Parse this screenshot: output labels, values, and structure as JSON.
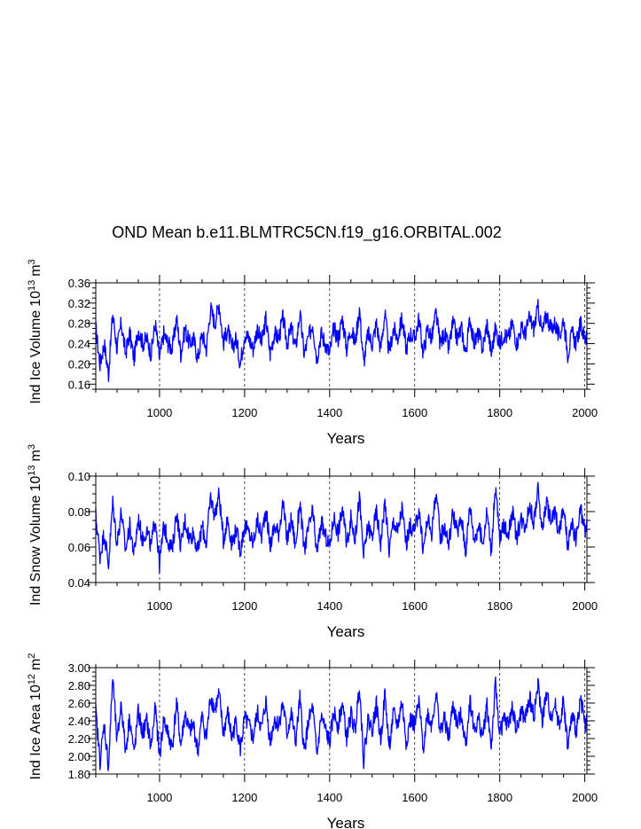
{
  "page_title": "OND Mean b.e11.BLMTRC5CN.f19_g16.ORBITAL.002",
  "colors": {
    "series": "#0000ff",
    "axis": "#000000",
    "grid": "#000000"
  },
  "chart_data": [
    {
      "type": "line",
      "ylabel": "Ind Ice Volume",
      "unit_prefix": "10",
      "unit_exp": "13",
      "unit_tail": "m",
      "unit_tail_exp": "3",
      "xlabel": "Years",
      "xlim": [
        850,
        2005
      ],
      "ylim": [
        0.15,
        0.36
      ],
      "xticks": [
        1000,
        1200,
        1400,
        1600,
        1800,
        2000
      ],
      "yticks": [
        "0.16",
        "0.20",
        "0.24",
        "0.28",
        "0.32",
        "0.36"
      ],
      "ytick_values": [
        0.16,
        0.2,
        0.24,
        0.28,
        0.32,
        0.36
      ],
      "grid_x": [
        1000,
        1200,
        1400,
        1600,
        1800,
        2000
      ],
      "series": [
        {
          "name": "Ind Ice Volume",
          "x": [
            850,
            860,
            870,
            880,
            890,
            900,
            910,
            920,
            930,
            940,
            950,
            960,
            970,
            980,
            990,
            1000,
            1010,
            1020,
            1030,
            1040,
            1050,
            1060,
            1070,
            1080,
            1090,
            1100,
            1110,
            1120,
            1130,
            1140,
            1150,
            1160,
            1170,
            1180,
            1190,
            1200,
            1210,
            1220,
            1230,
            1240,
            1250,
            1260,
            1270,
            1280,
            1290,
            1300,
            1310,
            1320,
            1330,
            1340,
            1350,
            1360,
            1370,
            1380,
            1390,
            1400,
            1410,
            1420,
            1430,
            1440,
            1450,
            1460,
            1470,
            1480,
            1490,
            1500,
            1510,
            1520,
            1530,
            1540,
            1550,
            1560,
            1570,
            1580,
            1590,
            1600,
            1610,
            1620,
            1630,
            1640,
            1650,
            1660,
            1670,
            1680,
            1690,
            1700,
            1710,
            1720,
            1730,
            1740,
            1750,
            1760,
            1770,
            1780,
            1790,
            1800,
            1810,
            1820,
            1830,
            1840,
            1850,
            1860,
            1870,
            1880,
            1890,
            1900,
            1910,
            1920,
            1930,
            1940,
            1950,
            1960,
            1970,
            1980,
            1990,
            2000,
            2005
          ],
          "values": [
            0.27,
            0.2,
            0.24,
            0.18,
            0.3,
            0.23,
            0.28,
            0.22,
            0.26,
            0.21,
            0.27,
            0.24,
            0.25,
            0.22,
            0.28,
            0.21,
            0.26,
            0.24,
            0.23,
            0.29,
            0.22,
            0.27,
            0.24,
            0.25,
            0.21,
            0.26,
            0.23,
            0.31,
            0.28,
            0.32,
            0.24,
            0.27,
            0.23,
            0.25,
            0.2,
            0.26,
            0.25,
            0.23,
            0.27,
            0.24,
            0.29,
            0.22,
            0.26,
            0.25,
            0.29,
            0.24,
            0.27,
            0.23,
            0.3,
            0.22,
            0.25,
            0.28,
            0.21,
            0.26,
            0.24,
            0.22,
            0.27,
            0.25,
            0.29,
            0.23,
            0.27,
            0.24,
            0.31,
            0.2,
            0.26,
            0.24,
            0.28,
            0.23,
            0.3,
            0.22,
            0.27,
            0.25,
            0.29,
            0.23,
            0.26,
            0.25,
            0.29,
            0.22,
            0.27,
            0.25,
            0.3,
            0.24,
            0.26,
            0.23,
            0.28,
            0.25,
            0.27,
            0.22,
            0.29,
            0.24,
            0.26,
            0.23,
            0.28,
            0.22,
            0.27,
            0.24,
            0.26,
            0.25,
            0.28,
            0.24,
            0.27,
            0.26,
            0.29,
            0.27,
            0.31,
            0.26,
            0.3,
            0.27,
            0.28,
            0.25,
            0.29,
            0.22,
            0.26,
            0.24,
            0.28,
            0.25,
            0.26
          ]
        }
      ]
    },
    {
      "type": "line",
      "ylabel": "Ind Snow Volume",
      "unit_prefix": "10",
      "unit_exp": "13",
      "unit_tail": "m",
      "unit_tail_exp": "3",
      "xlabel": "Years",
      "xlim": [
        850,
        2005
      ],
      "ylim": [
        0.04,
        0.1
      ],
      "xticks": [
        1000,
        1200,
        1400,
        1600,
        1800,
        2000
      ],
      "yticks": [
        "0.04",
        "0.06",
        "0.08",
        "0.10"
      ],
      "ytick_values": [
        0.04,
        0.06,
        0.08,
        0.1
      ],
      "grid_x": [
        1000,
        1200,
        1400,
        1600,
        1800,
        2000
      ],
      "series": [
        {
          "name": "Ind Snow Volume",
          "x": [
            850,
            860,
            870,
            880,
            890,
            900,
            910,
            920,
            930,
            940,
            950,
            960,
            970,
            980,
            990,
            1000,
            1010,
            1020,
            1030,
            1040,
            1050,
            1060,
            1070,
            1080,
            1090,
            1100,
            1110,
            1120,
            1130,
            1140,
            1150,
            1160,
            1170,
            1180,
            1190,
            1200,
            1210,
            1220,
            1230,
            1240,
            1250,
            1260,
            1270,
            1280,
            1290,
            1300,
            1310,
            1320,
            1330,
            1340,
            1350,
            1360,
            1370,
            1380,
            1390,
            1400,
            1410,
            1420,
            1430,
            1440,
            1450,
            1460,
            1470,
            1480,
            1490,
            1500,
            1510,
            1520,
            1530,
            1540,
            1550,
            1560,
            1570,
            1580,
            1590,
            1600,
            1610,
            1620,
            1630,
            1640,
            1650,
            1660,
            1670,
            1680,
            1690,
            1700,
            1710,
            1720,
            1730,
            1740,
            1750,
            1760,
            1770,
            1780,
            1790,
            1800,
            1810,
            1820,
            1830,
            1840,
            1850,
            1860,
            1870,
            1880,
            1890,
            1900,
            1910,
            1920,
            1930,
            1940,
            1950,
            1960,
            1970,
            1980,
            1990,
            2000,
            2005
          ],
          "values": [
            0.078,
            0.055,
            0.068,
            0.05,
            0.085,
            0.062,
            0.08,
            0.058,
            0.072,
            0.056,
            0.076,
            0.064,
            0.07,
            0.06,
            0.077,
            0.05,
            0.072,
            0.064,
            0.058,
            0.08,
            0.06,
            0.075,
            0.065,
            0.068,
            0.057,
            0.072,
            0.062,
            0.088,
            0.078,
            0.09,
            0.064,
            0.076,
            0.062,
            0.07,
            0.058,
            0.072,
            0.068,
            0.062,
            0.075,
            0.066,
            0.082,
            0.06,
            0.072,
            0.068,
            0.085,
            0.064,
            0.076,
            0.06,
            0.086,
            0.058,
            0.07,
            0.08,
            0.056,
            0.074,
            0.066,
            0.06,
            0.077,
            0.068,
            0.082,
            0.062,
            0.076,
            0.065,
            0.088,
            0.055,
            0.072,
            0.066,
            0.08,
            0.062,
            0.086,
            0.058,
            0.075,
            0.068,
            0.082,
            0.062,
            0.072,
            0.068,
            0.082,
            0.058,
            0.076,
            0.068,
            0.092,
            0.065,
            0.072,
            0.062,
            0.08,
            0.068,
            0.076,
            0.058,
            0.084,
            0.064,
            0.072,
            0.062,
            0.08,
            0.058,
            0.094,
            0.064,
            0.072,
            0.068,
            0.08,
            0.065,
            0.076,
            0.072,
            0.084,
            0.074,
            0.092,
            0.07,
            0.086,
            0.074,
            0.08,
            0.068,
            0.082,
            0.06,
            0.072,
            0.064,
            0.082,
            0.068,
            0.072
          ]
        }
      ]
    },
    {
      "type": "line",
      "ylabel": "Ind Ice Area",
      "unit_prefix": "10",
      "unit_exp": "12",
      "unit_tail": "m",
      "unit_tail_exp": "2",
      "xlabel": "Years",
      "xlim": [
        850,
        2005
      ],
      "ylim": [
        1.8,
        3.0
      ],
      "xticks": [
        1000,
        1200,
        1400,
        1600,
        1800,
        2000
      ],
      "yticks": [
        "1.80",
        "2.00",
        "2.20",
        "2.40",
        "2.60",
        "2.80",
        "3.00"
      ],
      "ytick_values": [
        1.8,
        2.0,
        2.2,
        2.4,
        2.6,
        2.8,
        3.0
      ],
      "grid_x": [
        1000,
        1200,
        1400,
        1600,
        1800,
        2000
      ],
      "series": [
        {
          "name": "Ind Ice Area",
          "x": [
            850,
            860,
            870,
            880,
            890,
            900,
            910,
            920,
            930,
            940,
            950,
            960,
            970,
            980,
            990,
            1000,
            1010,
            1020,
            1030,
            1040,
            1050,
            1060,
            1070,
            1080,
            1090,
            1100,
            1110,
            1120,
            1130,
            1140,
            1150,
            1160,
            1170,
            1180,
            1190,
            1200,
            1210,
            1220,
            1230,
            1240,
            1250,
            1260,
            1270,
            1280,
            1290,
            1300,
            1310,
            1320,
            1330,
            1340,
            1350,
            1360,
            1370,
            1380,
            1390,
            1400,
            1410,
            1420,
            1430,
            1440,
            1450,
            1460,
            1470,
            1480,
            1490,
            1500,
            1510,
            1520,
            1530,
            1540,
            1550,
            1560,
            1570,
            1580,
            1590,
            1600,
            1610,
            1620,
            1630,
            1640,
            1650,
            1660,
            1670,
            1680,
            1690,
            1700,
            1710,
            1720,
            1730,
            1740,
            1750,
            1760,
            1770,
            1780,
            1790,
            1800,
            1810,
            1820,
            1830,
            1840,
            1850,
            1860,
            1870,
            1880,
            1890,
            1900,
            1910,
            1920,
            1930,
            1940,
            1950,
            1960,
            1970,
            1980,
            1990,
            2000,
            2005
          ],
          "values": [
            2.5,
            1.95,
            2.35,
            1.88,
            2.9,
            2.15,
            2.6,
            2.05,
            2.45,
            2.02,
            2.5,
            2.25,
            2.4,
            2.1,
            2.55,
            2.0,
            2.42,
            2.25,
            2.1,
            2.6,
            2.12,
            2.48,
            2.28,
            2.35,
            2.05,
            2.45,
            2.2,
            2.68,
            2.52,
            2.7,
            2.25,
            2.5,
            2.2,
            2.4,
            2.08,
            2.42,
            2.35,
            2.2,
            2.5,
            2.3,
            2.62,
            2.15,
            2.42,
            2.35,
            2.6,
            2.25,
            2.48,
            2.15,
            2.65,
            2.05,
            2.38,
            2.55,
            2.0,
            2.45,
            2.3,
            2.15,
            2.5,
            2.35,
            2.6,
            2.2,
            2.48,
            2.28,
            2.82,
            1.96,
            2.42,
            2.3,
            2.58,
            2.18,
            2.7,
            2.1,
            2.48,
            2.35,
            2.62,
            2.15,
            2.42,
            2.35,
            2.6,
            2.1,
            2.48,
            2.35,
            2.72,
            2.28,
            2.42,
            2.2,
            2.58,
            2.35,
            2.48,
            2.12,
            2.65,
            2.28,
            2.42,
            2.22,
            2.58,
            2.1,
            2.8,
            2.25,
            2.42,
            2.35,
            2.55,
            2.28,
            2.5,
            2.42,
            2.65,
            2.45,
            2.8,
            2.4,
            2.7,
            2.45,
            2.58,
            2.35,
            2.62,
            2.1,
            2.45,
            2.28,
            2.68,
            2.35,
            2.4
          ]
        }
      ]
    }
  ]
}
